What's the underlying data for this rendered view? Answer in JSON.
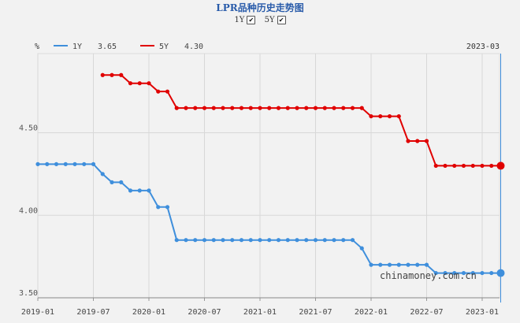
{
  "title": "LPR品种历史走势图",
  "toggles": [
    {
      "label": "1Y",
      "checked": true
    },
    {
      "label": "5Y",
      "checked": true
    }
  ],
  "watermark": "chinamoney.com.cn",
  "chart_data": {
    "type": "line",
    "ylabel": "%",
    "xlabel": "",
    "ylim": [
      3.5,
      4.98
    ],
    "y_ticks": [
      {
        "value": 3.5,
        "label": "3.50"
      },
      {
        "value": 4.0,
        "label": "4.00"
      },
      {
        "value": 4.5,
        "label": "4.50"
      }
    ],
    "x_ticks": [
      "2019-01",
      "2019-07",
      "2020-01",
      "2020-07",
      "2021-01",
      "2021-07",
      "2022-01",
      "2022-07",
      "2023-01"
    ],
    "crosshair_label": "2023-03",
    "grid": true,
    "legend_position": "top-left",
    "series": [
      {
        "name": "1Y",
        "current_value": "3.65",
        "color": "#3f8fdc",
        "points": [
          [
            "2019-01",
            4.31
          ],
          [
            "2019-02",
            4.31
          ],
          [
            "2019-03",
            4.31
          ],
          [
            "2019-04",
            4.31
          ],
          [
            "2019-05",
            4.31
          ],
          [
            "2019-06",
            4.31
          ],
          [
            "2019-07",
            4.31
          ],
          [
            "2019-08",
            4.25
          ],
          [
            "2019-09",
            4.2
          ],
          [
            "2019-10",
            4.2
          ],
          [
            "2019-11",
            4.15
          ],
          [
            "2019-12",
            4.15
          ],
          [
            "2020-01",
            4.15
          ],
          [
            "2020-02",
            4.05
          ],
          [
            "2020-03",
            4.05
          ],
          [
            "2020-04",
            3.85
          ],
          [
            "2020-05",
            3.85
          ],
          [
            "2020-06",
            3.85
          ],
          [
            "2020-07",
            3.85
          ],
          [
            "2020-08",
            3.85
          ],
          [
            "2020-09",
            3.85
          ],
          [
            "2020-10",
            3.85
          ],
          [
            "2020-11",
            3.85
          ],
          [
            "2020-12",
            3.85
          ],
          [
            "2021-01",
            3.85
          ],
          [
            "2021-02",
            3.85
          ],
          [
            "2021-03",
            3.85
          ],
          [
            "2021-04",
            3.85
          ],
          [
            "2021-05",
            3.85
          ],
          [
            "2021-06",
            3.85
          ],
          [
            "2021-07",
            3.85
          ],
          [
            "2021-08",
            3.85
          ],
          [
            "2021-09",
            3.85
          ],
          [
            "2021-10",
            3.85
          ],
          [
            "2021-11",
            3.85
          ],
          [
            "2021-12",
            3.8
          ],
          [
            "2022-01",
            3.7
          ],
          [
            "2022-02",
            3.7
          ],
          [
            "2022-03",
            3.7
          ],
          [
            "2022-04",
            3.7
          ],
          [
            "2022-05",
            3.7
          ],
          [
            "2022-06",
            3.7
          ],
          [
            "2022-07",
            3.7
          ],
          [
            "2022-08",
            3.65
          ],
          [
            "2022-09",
            3.65
          ],
          [
            "2022-10",
            3.65
          ],
          [
            "2022-11",
            3.65
          ],
          [
            "2022-12",
            3.65
          ],
          [
            "2023-01",
            3.65
          ],
          [
            "2023-02",
            3.65
          ],
          [
            "2023-03",
            3.65
          ]
        ]
      },
      {
        "name": "5Y",
        "current_value": "4.30",
        "color": "#e00000",
        "points": [
          [
            "2019-08",
            4.85
          ],
          [
            "2019-09",
            4.85
          ],
          [
            "2019-10",
            4.85
          ],
          [
            "2019-11",
            4.8
          ],
          [
            "2019-12",
            4.8
          ],
          [
            "2020-01",
            4.8
          ],
          [
            "2020-02",
            4.75
          ],
          [
            "2020-03",
            4.75
          ],
          [
            "2020-04",
            4.65
          ],
          [
            "2020-05",
            4.65
          ],
          [
            "2020-06",
            4.65
          ],
          [
            "2020-07",
            4.65
          ],
          [
            "2020-08",
            4.65
          ],
          [
            "2020-09",
            4.65
          ],
          [
            "2020-10",
            4.65
          ],
          [
            "2020-11",
            4.65
          ],
          [
            "2020-12",
            4.65
          ],
          [
            "2021-01",
            4.65
          ],
          [
            "2021-02",
            4.65
          ],
          [
            "2021-03",
            4.65
          ],
          [
            "2021-04",
            4.65
          ],
          [
            "2021-05",
            4.65
          ],
          [
            "2021-06",
            4.65
          ],
          [
            "2021-07",
            4.65
          ],
          [
            "2021-08",
            4.65
          ],
          [
            "2021-09",
            4.65
          ],
          [
            "2021-10",
            4.65
          ],
          [
            "2021-11",
            4.65
          ],
          [
            "2021-12",
            4.65
          ],
          [
            "2022-01",
            4.6
          ],
          [
            "2022-02",
            4.6
          ],
          [
            "2022-03",
            4.6
          ],
          [
            "2022-04",
            4.6
          ],
          [
            "2022-05",
            4.45
          ],
          [
            "2022-06",
            4.45
          ],
          [
            "2022-07",
            4.45
          ],
          [
            "2022-08",
            4.3
          ],
          [
            "2022-09",
            4.3
          ],
          [
            "2022-10",
            4.3
          ],
          [
            "2022-11",
            4.3
          ],
          [
            "2022-12",
            4.3
          ],
          [
            "2023-01",
            4.3
          ],
          [
            "2023-02",
            4.3
          ],
          [
            "2023-03",
            4.3
          ]
        ]
      }
    ]
  }
}
